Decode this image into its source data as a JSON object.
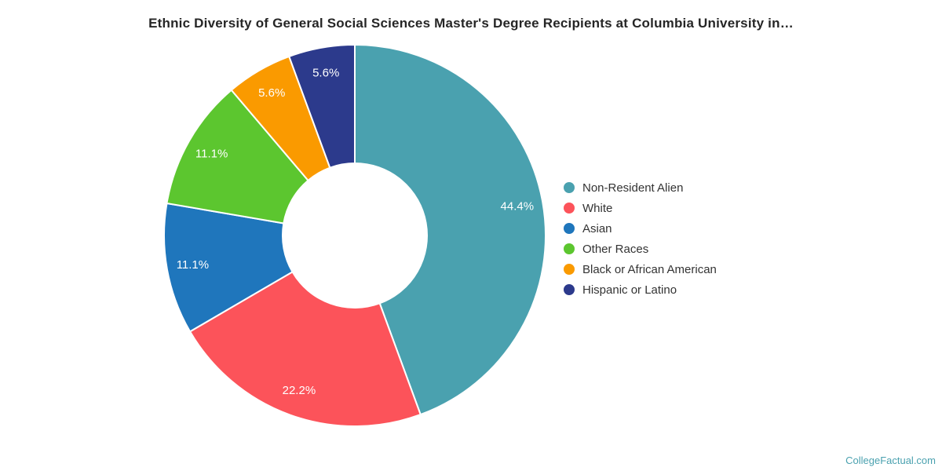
{
  "title": "Ethnic Diversity of General Social Sciences Master's Degree Recipients at Columbia University in…",
  "watermark": "CollegeFactual.com",
  "chart_data": {
    "type": "pie",
    "subtype": "donut",
    "title": "Ethnic Diversity of General Social Sciences Master's Degree Recipients at Columbia University in…",
    "categories": [
      "Non-Resident Alien",
      "White",
      "Asian",
      "Other Races",
      "Black or African American",
      "Hispanic or Latino"
    ],
    "values": [
      44.4,
      22.2,
      11.1,
      11.1,
      5.6,
      5.6
    ],
    "value_labels": [
      "44.4%",
      "22.2%",
      "11.1%",
      "11.1%",
      "5.6%",
      "5.6%"
    ],
    "colors": [
      "#4aa1af",
      "#fc535a",
      "#1f76bc",
      "#5cc62f",
      "#fa9a00",
      "#2c3a8c"
    ],
    "unit": "%",
    "start_angle_deg": 0,
    "direction": "clockwise",
    "inner_radius_ratio": 0.38,
    "labels_inside": true,
    "label_color": "#ffffff",
    "legend_position": "right",
    "grid": false
  }
}
